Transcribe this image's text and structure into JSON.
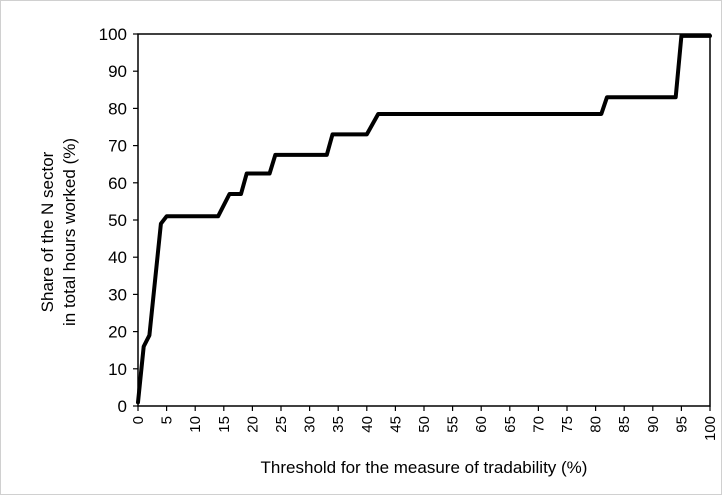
{
  "chart_data": {
    "type": "line",
    "title": "",
    "xlabel": "Threshold for the measure of tradability (%)",
    "ylabel_line1": "Share of the N sector",
    "ylabel_line2": "in total hours worked (%)",
    "xlim": [
      0,
      100
    ],
    "ylim": [
      0,
      100
    ],
    "x_ticks": [
      0,
      5,
      10,
      15,
      20,
      25,
      30,
      35,
      40,
      45,
      50,
      55,
      60,
      65,
      70,
      75,
      80,
      85,
      90,
      95,
      100
    ],
    "y_ticks": [
      0,
      10,
      20,
      30,
      40,
      50,
      60,
      70,
      80,
      90,
      100
    ],
    "grid": false,
    "legend": "none",
    "line_color": "#000000",
    "series": [
      {
        "x": [
          0,
          1,
          2,
          4,
          5,
          14,
          16,
          18,
          19,
          23,
          24,
          33,
          34,
          40,
          42,
          81,
          82,
          94,
          95,
          100
        ],
        "y": [
          1,
          16,
          19,
          49,
          51,
          51,
          57,
          57,
          62.5,
          62.5,
          67.5,
          67.5,
          73,
          73,
          78.5,
          78.5,
          83,
          83,
          99.5,
          99.5
        ]
      }
    ]
  }
}
